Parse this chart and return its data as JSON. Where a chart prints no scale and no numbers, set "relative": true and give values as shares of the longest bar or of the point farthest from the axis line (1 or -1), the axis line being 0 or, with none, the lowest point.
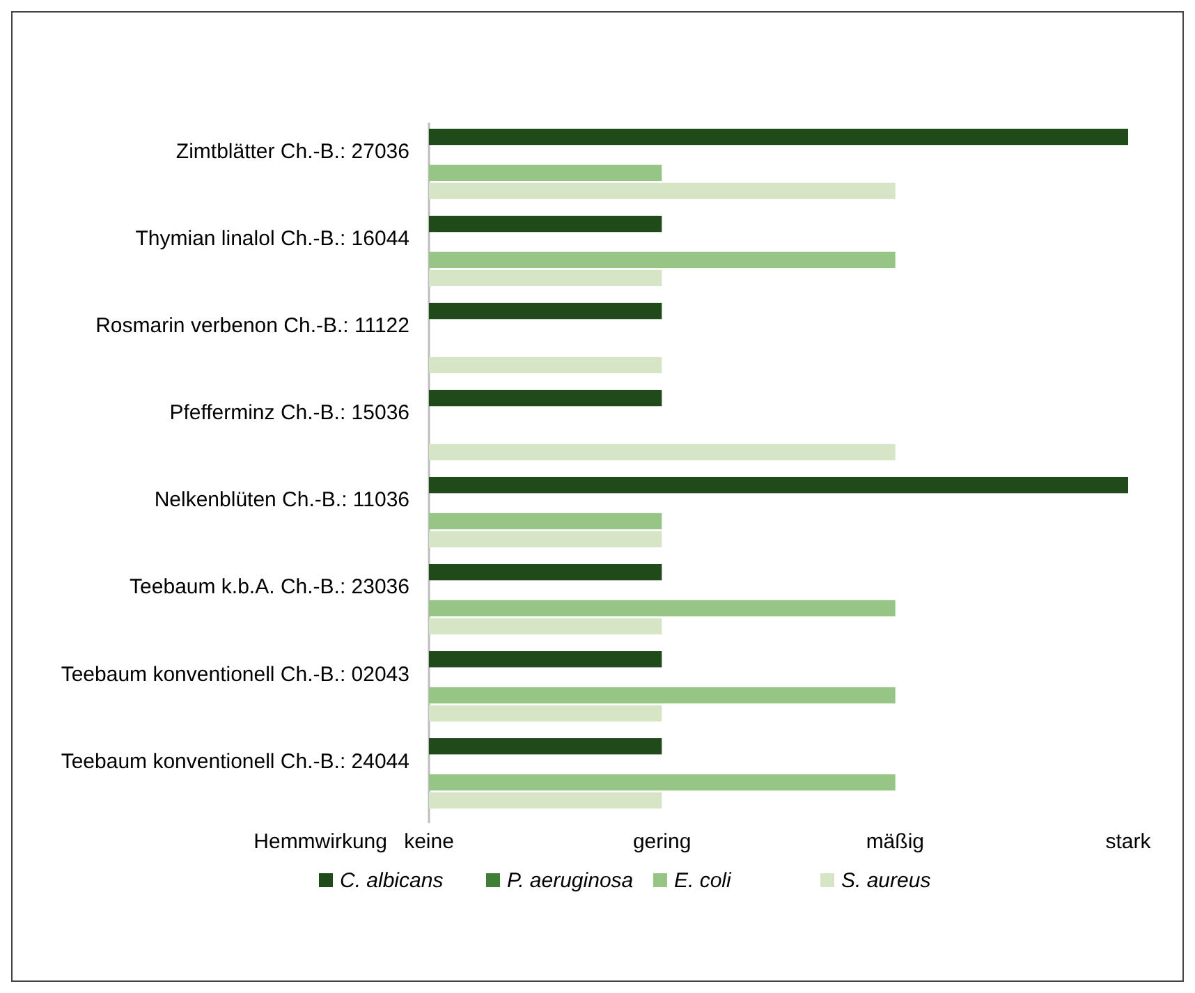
{
  "chart_data": {
    "type": "bar",
    "orientation": "horizontal",
    "relative": true,
    "xlabel": "Hemmwirkung",
    "categories": [
      "Zimtblätter Ch.-B.: 27036",
      "Thymian linalol Ch.-B.: 16044",
      "Rosmarin verbenon Ch.-B.: 11122",
      "Pfefferminz Ch.-B.: 15036",
      "Nelkenblüten Ch.-B.: 11036",
      "Teebaum k.b.A. Ch.-B.: 23036",
      "Teebaum konventionell Ch.-B.: 02043",
      "Teebaum konventionell Ch.-B.: 24044"
    ],
    "series": [
      {
        "name": "C. albicans",
        "color": "#214a1a",
        "values": [
          1,
          0.333,
          0.333,
          0.333,
          1,
          0.333,
          0.333,
          0.333
        ]
      },
      {
        "name": "P. aeruginosa",
        "color": "#3f7f35",
        "values": [
          0,
          0,
          0,
          0,
          0,
          0,
          0,
          0
        ]
      },
      {
        "name": "E. coli",
        "color": "#96c585",
        "values": [
          0.333,
          0.667,
          0,
          0,
          0.333,
          0.667,
          0.667,
          0.667
        ]
      },
      {
        "name": "S. aureus",
        "color": "#d7e5c7",
        "values": [
          0.667,
          0.333,
          0.333,
          0.667,
          0.333,
          0.333,
          0.333,
          0.333
        ]
      }
    ],
    "annotations": [
      "keine",
      "gering",
      "mäßig",
      "stark"
    ],
    "legend": "bottom"
  }
}
